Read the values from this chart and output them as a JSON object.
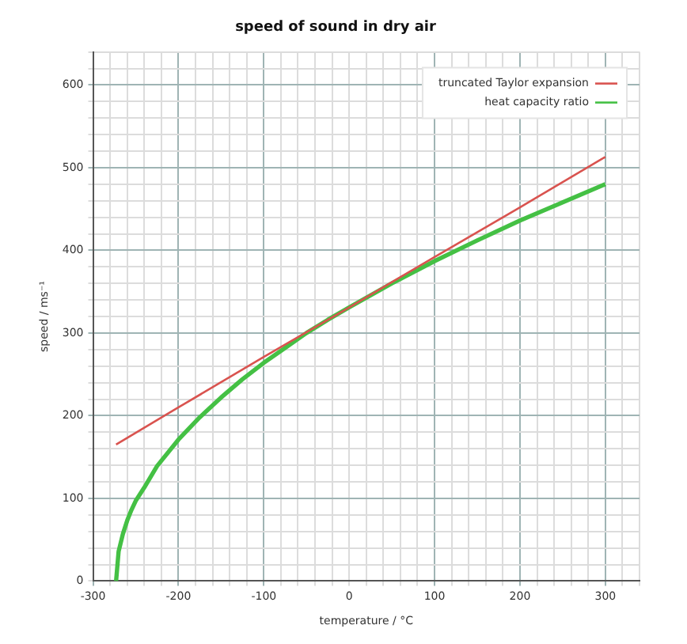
{
  "chart_data": {
    "type": "line",
    "title": "speed of sound in dry air",
    "xlabel": "temperature / °C",
    "ylabel": "speed / ms⁻¹",
    "xlim": [
      -300,
      340
    ],
    "ylim": [
      0,
      640
    ],
    "xticks": [
      -300,
      {
        "value": -280,
        "label": null
      },
      {
        "value": -260,
        "label": null
      },
      {
        "value": -240,
        "label": null
      },
      {
        "value": -220,
        "label": null
      },
      -200,
      {
        "value": -180,
        "label": null
      },
      {
        "value": -160,
        "label": null
      },
      {
        "value": -140,
        "label": null
      },
      {
        "value": -120,
        "label": null
      },
      -100,
      {
        "value": -80,
        "label": null
      },
      {
        "value": -60,
        "label": null
      },
      {
        "value": -40,
        "label": null
      },
      {
        "value": -20,
        "label": null
      },
      0,
      {
        "value": 20,
        "label": null
      },
      {
        "value": 40,
        "label": null
      },
      {
        "value": 60,
        "label": null
      },
      {
        "value": 80,
        "label": null
      },
      100,
      {
        "value": 120,
        "label": null
      },
      {
        "value": 140,
        "label": null
      },
      {
        "value": 160,
        "label": null
      },
      {
        "value": 180,
        "label": null
      },
      200,
      {
        "value": 220,
        "label": null
      },
      {
        "value": 240,
        "label": null
      },
      {
        "value": 260,
        "label": null
      },
      {
        "value": 280,
        "label": null
      },
      300,
      {
        "value": 320,
        "label": null
      },
      {
        "value": 340,
        "label": null
      }
    ],
    "yticks": [
      0,
      {
        "value": 20,
        "label": null
      },
      {
        "value": 40,
        "label": null
      },
      {
        "value": 60,
        "label": null
      },
      {
        "value": 80,
        "label": null
      },
      100,
      {
        "value": 120,
        "label": null
      },
      {
        "value": 140,
        "label": null
      },
      {
        "value": 160,
        "label": null
      },
      {
        "value": 180,
        "label": null
      },
      200,
      {
        "value": 220,
        "label": null
      },
      {
        "value": 240,
        "label": null
      },
      {
        "value": 260,
        "label": null
      },
      {
        "value": 280,
        "label": null
      },
      300,
      {
        "value": 320,
        "label": null
      },
      {
        "value": 340,
        "label": null
      },
      {
        "value": 360,
        "label": null
      },
      {
        "value": 380,
        "label": null
      },
      400,
      {
        "value": 420,
        "label": null
      },
      {
        "value": 440,
        "label": null
      },
      {
        "value": 460,
        "label": null
      },
      {
        "value": 480,
        "label": null
      },
      500,
      {
        "value": 520,
        "label": null
      },
      {
        "value": 540,
        "label": null
      },
      {
        "value": 560,
        "label": null
      },
      {
        "value": 580,
        "label": null
      },
      600,
      {
        "value": 620,
        "label": null
      },
      {
        "value": 640,
        "label": null
      }
    ],
    "grid": true,
    "legend": "top right",
    "marker": "none",
    "line_style": "solid",
    "series": [
      {
        "name": "truncated Taylor expansion",
        "color": "#d9534f",
        "x": [
          -273,
          -200,
          -100,
          0,
          100,
          200,
          300
        ],
        "values": [
          165,
          210,
          271,
          331,
          392,
          452,
          513
        ]
      },
      {
        "name": "heat capacity ratio",
        "color": "#44c044",
        "x": [
          -273,
          -270,
          -265,
          -260,
          -255,
          -250,
          -240,
          -225,
          -200,
          -175,
          -150,
          -125,
          -100,
          -75,
          -50,
          -25,
          0,
          50,
          100,
          150,
          200,
          250,
          300
        ],
        "values": [
          0,
          36,
          57,
          73,
          86,
          97,
          113,
          139,
          171,
          198,
          222,
          244,
          264,
          282,
          300,
          316,
          331,
          360,
          387,
          412,
          436,
          458,
          480
        ]
      }
    ]
  }
}
